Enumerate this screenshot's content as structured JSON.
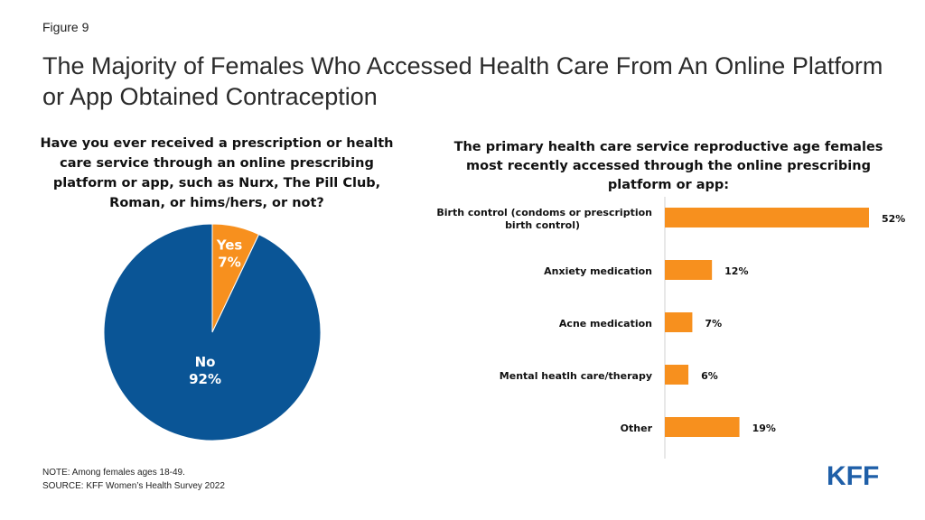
{
  "figure_label": "Figure 9",
  "title": "The Majority of Females Who Accessed Health Care From An Online Platform or App Obtained Contraception",
  "colors": {
    "orange": "#f7901e",
    "blue": "#0a5596",
    "text": "#111111"
  },
  "chart_data": [
    {
      "type": "pie",
      "title": "Have you ever received a prescription or health care service through an online prescribing platform or app, such as Nurx, The Pill Club, Roman, or hims/hers, or not?",
      "slices": [
        {
          "label": "Yes",
          "value": 7,
          "display": "7%",
          "color": "#f7901e"
        },
        {
          "label": "No",
          "value": 92,
          "display": "92%",
          "color": "#0a5596"
        }
      ]
    },
    {
      "type": "bar",
      "orientation": "horizontal",
      "title": "The primary health care service reproductive age females most recently accessed through the online prescribing platform or app:",
      "categories": [
        [
          "Birth control (condoms or prescription",
          "birth control)"
        ],
        [
          "Anxiety medication"
        ],
        [
          "Acne medication"
        ],
        [
          "Mental heatlh care/therapy"
        ],
        [
          "Other"
        ]
      ],
      "values": [
        52,
        12,
        7,
        6,
        19
      ],
      "value_labels": [
        "52%",
        "12%",
        "7%",
        "6%",
        "19%"
      ],
      "color": "#f7901e"
    }
  ],
  "notes": {
    "note": "NOTE: Among females ages 18-49.",
    "source": "SOURCE:  KFF Women’s Health Survey 2022"
  },
  "logo_text": "KFF"
}
